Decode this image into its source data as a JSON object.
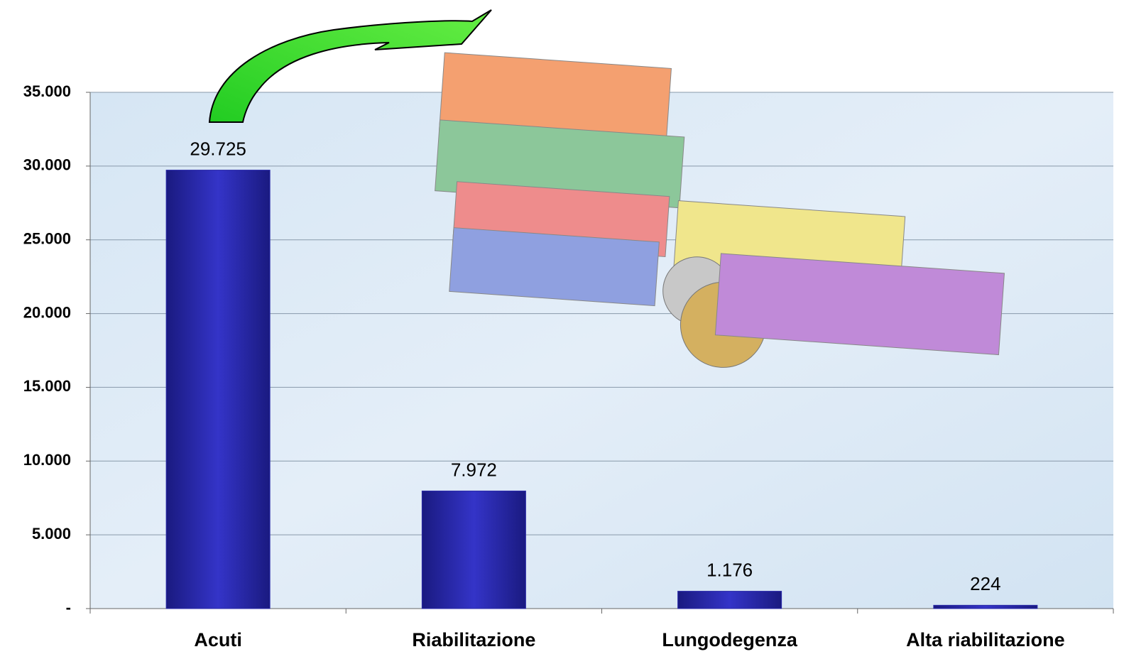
{
  "chart_data": {
    "type": "bar",
    "categories": [
      "Acuti",
      "Riabilitazione",
      "Lungodegenza",
      "Alta riabilitazione"
    ],
    "values": [
      29725,
      7972,
      1176,
      224
    ],
    "value_labels": [
      "29.725",
      "7.972",
      "1.176",
      "224"
    ],
    "color": "#2a2aa8",
    "ylim": [
      0,
      35000
    ],
    "yticks": [
      {
        "value": 0,
        "label": "-"
      },
      {
        "value": 5000,
        "label": "5.000"
      },
      {
        "value": 10000,
        "label": "10.000"
      },
      {
        "value": 15000,
        "label": "15.000"
      },
      {
        "value": 20000,
        "label": "20.000"
      },
      {
        "value": 25000,
        "label": "25.000"
      },
      {
        "value": 30000,
        "label": "30.000"
      },
      {
        "value": 35000,
        "label": "35.000"
      }
    ],
    "grid": true
  }
}
